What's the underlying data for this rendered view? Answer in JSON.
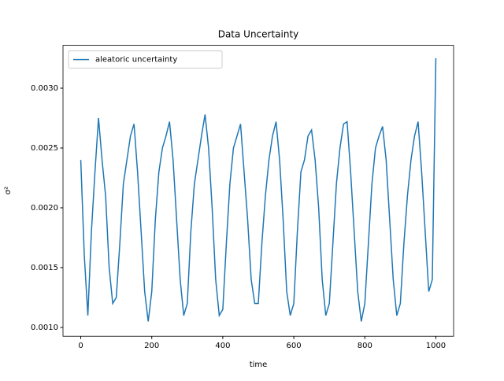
{
  "chart_data": {
    "type": "line",
    "title": "Data Uncertainty",
    "x_label": "time",
    "y_label": "σ²",
    "x": [
      0,
      10,
      20,
      30,
      40,
      50,
      60,
      70,
      80,
      90,
      100,
      110,
      120,
      130,
      140,
      150,
      160,
      170,
      180,
      190,
      200,
      210,
      220,
      230,
      240,
      250,
      260,
      270,
      280,
      290,
      300,
      310,
      320,
      330,
      340,
      350,
      360,
      370,
      380,
      390,
      400,
      410,
      420,
      430,
      440,
      450,
      460,
      470,
      480,
      490,
      500,
      510,
      520,
      530,
      540,
      550,
      560,
      570,
      580,
      590,
      600,
      610,
      620,
      630,
      640,
      650,
      660,
      670,
      680,
      690,
      700,
      710,
      720,
      730,
      740,
      750,
      760,
      770,
      780,
      790,
      800,
      810,
      820,
      830,
      840,
      850,
      860,
      870,
      880,
      890,
      900,
      910,
      920,
      930,
      940,
      950,
      960,
      970,
      980,
      990,
      1000
    ],
    "series": [
      {
        "name": "aleatoric uncertainty",
        "color": "#1f77b4",
        "values": [
          0.0024,
          0.0016,
          0.0011,
          0.0018,
          0.0023,
          0.00275,
          0.0024,
          0.0021,
          0.0015,
          0.0012,
          0.00125,
          0.0017,
          0.0022,
          0.0024,
          0.0026,
          0.0027,
          0.0023,
          0.0018,
          0.0013,
          0.00105,
          0.0013,
          0.0019,
          0.0023,
          0.0025,
          0.0026,
          0.00272,
          0.0024,
          0.0019,
          0.0014,
          0.0011,
          0.0012,
          0.0018,
          0.0022,
          0.0024,
          0.0026,
          0.00278,
          0.0025,
          0.002,
          0.0014,
          0.0011,
          0.00115,
          0.0017,
          0.0022,
          0.0025,
          0.0026,
          0.0027,
          0.0023,
          0.0019,
          0.0014,
          0.0012,
          0.0012,
          0.0017,
          0.0021,
          0.0024,
          0.0026,
          0.00272,
          0.0024,
          0.0019,
          0.0013,
          0.0011,
          0.0012,
          0.0018,
          0.0023,
          0.0024,
          0.0026,
          0.00265,
          0.0024,
          0.002,
          0.0014,
          0.0011,
          0.0012,
          0.0017,
          0.0022,
          0.0025,
          0.0027,
          0.00272,
          0.0023,
          0.0018,
          0.0013,
          0.00105,
          0.0012,
          0.0017,
          0.0022,
          0.0025,
          0.0026,
          0.00268,
          0.0024,
          0.0019,
          0.0014,
          0.0011,
          0.0012,
          0.0017,
          0.0021,
          0.0024,
          0.0026,
          0.00272,
          0.0023,
          0.0018,
          0.0013,
          0.0014,
          0.00325
        ]
      }
    ],
    "xlim": [
      -50,
      1050
    ],
    "xticks": [
      0,
      200,
      400,
      600,
      800,
      1000
    ],
    "ylim": [
      0.000926,
      0.003358
    ],
    "yticks": [
      {
        "value": 0.001,
        "label": "0.0010"
      },
      {
        "value": 0.0015,
        "label": "0.0015"
      },
      {
        "value": 0.002,
        "label": "0.0020"
      },
      {
        "value": 0.0025,
        "label": "0.0025"
      },
      {
        "value": 0.003,
        "label": "0.0030"
      }
    ],
    "legend": "upper left"
  }
}
